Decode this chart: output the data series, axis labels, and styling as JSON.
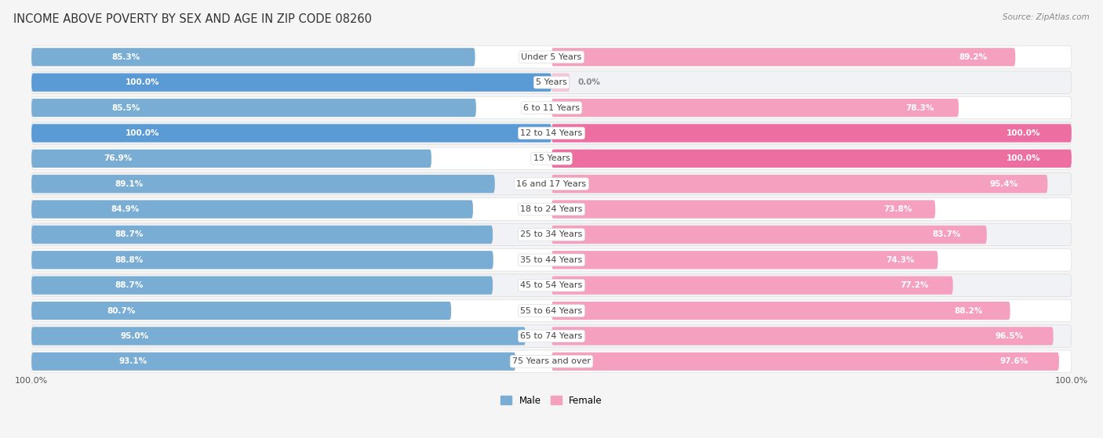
{
  "title": "INCOME ABOVE POVERTY BY SEX AND AGE IN ZIP CODE 08260",
  "source": "Source: ZipAtlas.com",
  "categories": [
    "Under 5 Years",
    "5 Years",
    "6 to 11 Years",
    "12 to 14 Years",
    "15 Years",
    "16 and 17 Years",
    "18 to 24 Years",
    "25 to 34 Years",
    "35 to 44 Years",
    "45 to 54 Years",
    "55 to 64 Years",
    "65 to 74 Years",
    "75 Years and over"
  ],
  "male_values": [
    85.3,
    100.0,
    85.5,
    100.0,
    76.9,
    89.1,
    84.9,
    88.7,
    88.8,
    88.7,
    80.7,
    95.0,
    93.1
  ],
  "female_values": [
    89.2,
    0.0,
    78.3,
    100.0,
    100.0,
    95.4,
    73.8,
    83.7,
    74.3,
    77.2,
    88.2,
    96.5,
    97.6
  ],
  "male_color_normal": "#7aadd4",
  "male_color_full": "#5b9bd5",
  "female_color_normal": "#f4a0be",
  "female_color_full": "#ed6ea0",
  "female_color_small": "#f8c4d8",
  "male_label": "Male",
  "female_label": "Female",
  "row_bg_light": "#f0f2f5",
  "row_bg_white": "#ffffff",
  "bg_color": "#f5f5f5",
  "title_fontsize": 10.5,
  "source_fontsize": 7.5,
  "bar_label_fontsize": 7.5,
  "category_fontsize": 8,
  "x_tick_label": "100.0%"
}
